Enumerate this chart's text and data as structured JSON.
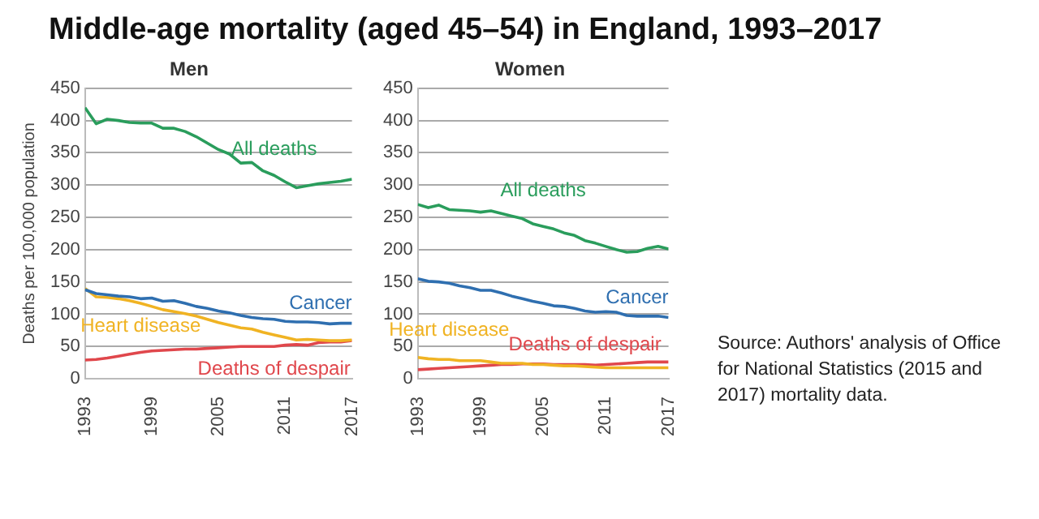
{
  "chart_data": [
    {
      "type": "line",
      "title": "Middle-age mortality (aged 45–54) in England, 1993–2017",
      "subtitle": "Men",
      "ylabel": "Deaths per 100,000 population",
      "x": [
        1993,
        1994,
        1995,
        1996,
        1997,
        1998,
        1999,
        2000,
        2001,
        2002,
        2003,
        2004,
        2005,
        2006,
        2007,
        2008,
        2009,
        2010,
        2011,
        2012,
        2013,
        2014,
        2015,
        2016,
        2017
      ],
      "xlim": [
        1993,
        2017
      ],
      "xticks": [
        1993,
        1999,
        2005,
        2011,
        2017
      ],
      "ylim": [
        0,
        450
      ],
      "yticks": [
        0,
        50,
        100,
        150,
        200,
        250,
        300,
        350,
        400,
        450
      ],
      "grid": "y",
      "marker": "none",
      "line_style": "solid",
      "series": [
        {
          "name": "All deaths",
          "color": "#2a9d5c",
          "values": [
            420,
            395,
            402,
            400,
            397,
            396,
            396,
            388,
            388,
            383,
            375,
            365,
            355,
            348,
            334,
            335,
            322,
            315,
            305,
            296,
            299,
            302,
            304,
            306,
            309
          ]
        },
        {
          "name": "Cancer",
          "color": "#2f6fb0",
          "values": [
            138,
            132,
            130,
            128,
            127,
            124,
            125,
            120,
            121,
            117,
            112,
            109,
            105,
            102,
            98,
            95,
            93,
            92,
            89,
            88,
            88,
            87,
            85,
            86,
            86
          ]
        },
        {
          "name": "Heart disease",
          "color": "#f0b323",
          "values": [
            140,
            127,
            126,
            124,
            121,
            117,
            112,
            107,
            104,
            101,
            97,
            92,
            87,
            83,
            79,
            77,
            72,
            68,
            64,
            60,
            61,
            60,
            59,
            59,
            60
          ]
        },
        {
          "name": "Deaths of despair",
          "color": "#e0474c",
          "values": [
            29,
            30,
            32,
            35,
            38,
            41,
            43,
            44,
            45,
            46,
            46,
            47,
            48,
            49,
            50,
            50,
            50,
            50,
            52,
            53,
            52,
            56,
            57,
            57,
            59
          ]
        }
      ]
    },
    {
      "type": "line",
      "title": "Women",
      "x": [
        1993,
        1994,
        1995,
        1996,
        1997,
        1998,
        1999,
        2000,
        2001,
        2002,
        2003,
        2004,
        2005,
        2006,
        2007,
        2008,
        2009,
        2010,
        2011,
        2012,
        2013,
        2014,
        2015,
        2016,
        2017
      ],
      "xlim": [
        1993,
        2017
      ],
      "xticks": [
        1993,
        1999,
        2005,
        2011,
        2017
      ],
      "ylim": [
        0,
        450
      ],
      "yticks": [
        0,
        50,
        100,
        150,
        200,
        250,
        300,
        350,
        400,
        450
      ],
      "grid": "y",
      "marker": "none",
      "line_style": "solid",
      "annotations": [
        "Source: Authors' analysis of Office for National Statistics (2015 and 2017) mortality data."
      ],
      "series": [
        {
          "name": "All deaths",
          "color": "#2a9d5c",
          "values": [
            270,
            265,
            269,
            262,
            261,
            260,
            258,
            260,
            256,
            252,
            248,
            240,
            236,
            232,
            226,
            222,
            214,
            210,
            205,
            200,
            196,
            197,
            202,
            205,
            201
          ]
        },
        {
          "name": "Cancer",
          "color": "#2f6fb0",
          "values": [
            155,
            151,
            150,
            148,
            144,
            141,
            137,
            137,
            133,
            128,
            124,
            120,
            117,
            113,
            112,
            109,
            105,
            103,
            104,
            103,
            98,
            97,
            97,
            97,
            95
          ]
        },
        {
          "name": "Heart disease",
          "color": "#f0b323",
          "values": [
            33,
            31,
            30,
            30,
            28,
            28,
            28,
            26,
            24,
            24,
            24,
            22,
            22,
            21,
            20,
            20,
            19,
            18,
            17,
            17,
            17,
            17,
            17,
            17,
            17
          ]
        },
        {
          "name": "Deaths of despair",
          "color": "#e0474c",
          "values": [
            14,
            15,
            16,
            17,
            18,
            19,
            20,
            21,
            22,
            22,
            23,
            23,
            23,
            22,
            22,
            22,
            22,
            21,
            22,
            23,
            24,
            25,
            26,
            26,
            26
          ]
        }
      ]
    }
  ]
}
